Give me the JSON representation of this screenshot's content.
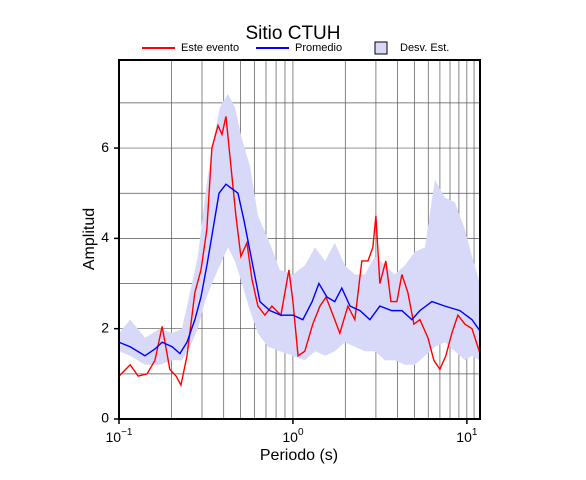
{
  "chart_data": {
    "type": "line",
    "title": "Sitio CTUH",
    "xlabel": "Periodo (s)",
    "ylabel": "Amplitud",
    "xscale": "log",
    "xlim": [
      0.1,
      11.9
    ],
    "ylim": [
      0,
      7.95
    ],
    "xticks": [
      {
        "value": 0.1,
        "label": "10",
        "exponent": "−1"
      },
      {
        "value": 1,
        "label": "10",
        "exponent": "0"
      },
      {
        "value": 10,
        "label": "10",
        "exponent": "1"
      }
    ],
    "yticks": [
      0,
      2,
      4,
      6
    ],
    "xgrid": [
      0.2,
      0.3,
      0.4,
      0.5,
      0.6,
      0.7,
      0.8,
      0.9,
      1,
      2,
      3,
      4,
      5,
      6,
      7,
      8,
      9,
      10,
      11
    ],
    "ygrid": [
      1,
      2,
      3,
      4,
      5,
      6,
      7
    ],
    "band": {
      "name": "Desv. Est.",
      "color": "#d8d8f8",
      "x": [
        0.1,
        0.116,
        0.141,
        0.172,
        0.202,
        0.23,
        0.256,
        0.284,
        0.312,
        0.342,
        0.38,
        0.423,
        0.464,
        0.509,
        0.566,
        0.629,
        0.718,
        0.842,
        1.0,
        1.17,
        1.34,
        1.53,
        1.74,
        1.99,
        2.27,
        2.59,
        2.96,
        3.38,
        3.85,
        4.4,
        5.02,
        5.74,
        6.55,
        7.48,
        8.53,
        9.75,
        10.7,
        11.9
      ],
      "lower": [
        1.5,
        1.4,
        1.2,
        1.2,
        1.3,
        1.3,
        1.6,
        2.0,
        2.6,
        3.0,
        3.4,
        3.8,
        3.5,
        3.0,
        2.4,
        1.9,
        1.6,
        1.5,
        1.4,
        1.3,
        1.5,
        1.4,
        1.5,
        1.7,
        1.6,
        1.5,
        1.5,
        1.3,
        1.3,
        1.2,
        1.2,
        1.4,
        1.6,
        1.7,
        1.5,
        1.3,
        1.4,
        1.3
      ],
      "upper": [
        1.9,
        2.2,
        1.8,
        2.0,
        1.9,
        2.0,
        2.8,
        3.6,
        4.9,
        6.0,
        6.9,
        7.2,
        6.9,
        6.2,
        5.6,
        4.5,
        4.0,
        3.3,
        3.2,
        3.4,
        3.8,
        3.5,
        3.9,
        3.4,
        3.2,
        3.2,
        3.6,
        3.4,
        3.2,
        3.4,
        3.7,
        3.8,
        5.3,
        4.9,
        4.8,
        4.2,
        3.6,
        3.0
      ]
    },
    "series": [
      {
        "name": "Este evento",
        "color": "#ff0000",
        "x": [
          0.1,
          0.116,
          0.129,
          0.145,
          0.161,
          0.177,
          0.196,
          0.213,
          0.227,
          0.246,
          0.273,
          0.296,
          0.32,
          0.342,
          0.371,
          0.391,
          0.412,
          0.44,
          0.47,
          0.502,
          0.544,
          0.581,
          0.629,
          0.69,
          0.757,
          0.853,
          0.948,
          1.0,
          1.07,
          1.17,
          1.3,
          1.43,
          1.55,
          1.7,
          1.86,
          2.07,
          2.27,
          2.49,
          2.7,
          2.88,
          3.0,
          3.16,
          3.42,
          3.66,
          3.96,
          4.23,
          4.58,
          4.96,
          5.37,
          5.97,
          6.46,
          7.0,
          7.57,
          8.2,
          8.88,
          9.75,
          10.7,
          11.9
        ],
        "values": [
          0.95,
          1.2,
          0.95,
          1.0,
          1.3,
          2.05,
          1.1,
          0.95,
          0.75,
          1.4,
          2.8,
          3.3,
          4.2,
          6.0,
          6.5,
          6.3,
          6.7,
          5.6,
          4.5,
          3.6,
          3.9,
          3.1,
          2.5,
          2.3,
          2.5,
          2.3,
          3.3,
          2.6,
          1.4,
          1.5,
          2.1,
          2.5,
          2.7,
          2.3,
          1.9,
          2.5,
          2.2,
          3.5,
          3.5,
          3.8,
          4.5,
          3.0,
          3.5,
          2.6,
          2.6,
          3.2,
          2.8,
          2.1,
          2.2,
          1.8,
          1.3,
          1.1,
          1.4,
          1.9,
          2.3,
          2.1,
          2.0,
          1.45
        ]
      },
      {
        "name": "Promedio",
        "color": "#0000ff",
        "x": [
          0.1,
          0.116,
          0.141,
          0.161,
          0.177,
          0.202,
          0.224,
          0.246,
          0.273,
          0.296,
          0.32,
          0.347,
          0.376,
          0.412,
          0.446,
          0.483,
          0.523,
          0.581,
          0.646,
          0.738,
          0.853,
          1.0,
          1.14,
          1.29,
          1.41,
          1.57,
          1.74,
          1.91,
          2.13,
          2.43,
          2.77,
          3.16,
          3.7,
          4.23,
          4.83,
          5.37,
          6.3,
          7.48,
          9.12,
          10.7,
          11.9
        ],
        "values": [
          1.7,
          1.6,
          1.4,
          1.55,
          1.7,
          1.6,
          1.45,
          1.7,
          2.2,
          2.7,
          3.4,
          4.2,
          5.0,
          5.2,
          5.1,
          5.0,
          4.4,
          3.5,
          2.6,
          2.4,
          2.3,
          2.3,
          2.2,
          2.6,
          3.0,
          2.7,
          2.6,
          2.9,
          2.5,
          2.4,
          2.2,
          2.5,
          2.4,
          2.4,
          2.2,
          2.4,
          2.6,
          2.5,
          2.4,
          2.2,
          1.95
        ]
      }
    ]
  }
}
